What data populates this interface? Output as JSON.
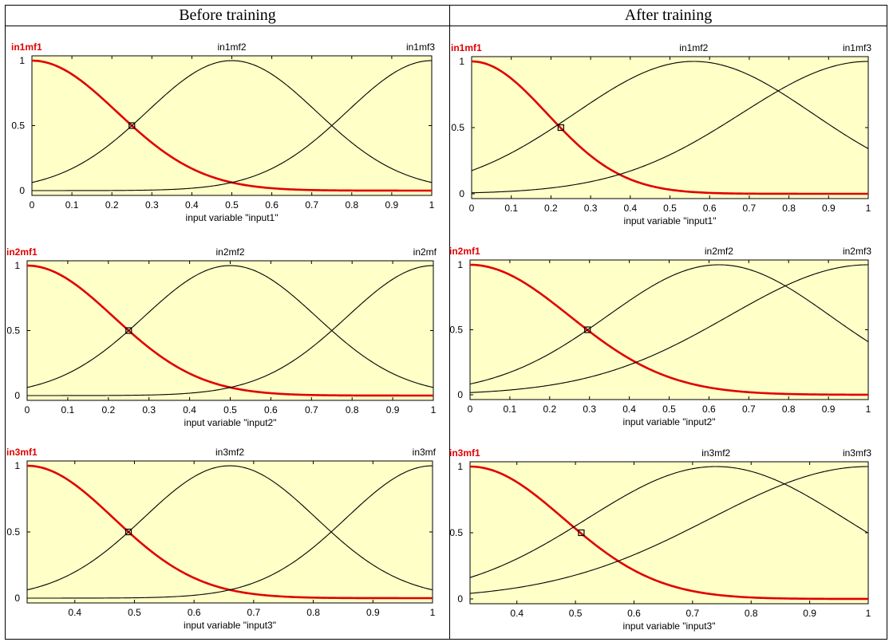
{
  "headers": {
    "left": "Before training",
    "right": "After training"
  },
  "chart_data": [
    {
      "type": "line",
      "panel": "Before training",
      "xlabel": "input variable \"input1\"",
      "xlim": [
        0,
        1
      ],
      "ylim": [
        0,
        1
      ],
      "xticks": [
        "0",
        "0.1",
        "0.2",
        "0.3",
        "0.4",
        "0.5",
        "0.6",
        "0.7",
        "0.8",
        "0.9",
        "1"
      ],
      "yticks": [
        "0",
        "0.5",
        "1"
      ],
      "series": [
        {
          "name": "in1mf1",
          "label": "in1mf1",
          "type": "gauss",
          "sigma": 0.2123,
          "center": 0,
          "color": "#e00000",
          "selected": true
        },
        {
          "name": "in1mf2",
          "label": "in1mf2",
          "type": "gauss",
          "sigma": 0.2123,
          "center": 0.5,
          "color": "#000000"
        },
        {
          "name": "in1mf3",
          "label": "in1mf3",
          "type": "gauss",
          "sigma": 0.2123,
          "center": 1,
          "color": "#000000"
        }
      ],
      "marker": {
        "x": 0.25,
        "y": 0.5
      }
    },
    {
      "type": "line",
      "panel": "After training",
      "xlabel": "input variable \"input1\"",
      "xlim": [
        0,
        1
      ],
      "ylim": [
        0,
        1
      ],
      "xticks": [
        "0",
        "0.1",
        "0.2",
        "0.3",
        "0.4",
        "0.5",
        "0.6",
        "0.7",
        "0.8",
        "0.9",
        "1"
      ],
      "yticks": [
        "0",
        "0.5",
        "1"
      ],
      "series": [
        {
          "name": "in1mf1",
          "label": "in1mf1",
          "type": "gauss",
          "sigma": 0.19,
          "center": 0,
          "color": "#e00000",
          "selected": true
        },
        {
          "name": "in1mf2",
          "label": "in1mf2",
          "type": "gauss",
          "sigma": 0.3,
          "center": 0.56,
          "color": "#000000"
        },
        {
          "name": "in1mf3",
          "label": "in1mf3",
          "type": "gauss",
          "sigma": 0.32,
          "center": 1,
          "color": "#000000"
        }
      ],
      "marker": {
        "x": 0.225,
        "y": 0.5
      }
    },
    {
      "type": "line",
      "panel": "Before training",
      "xlabel": "input variable \"input2\"",
      "xlim": [
        0,
        1
      ],
      "ylim": [
        0,
        1
      ],
      "xticks": [
        "0",
        "0.1",
        "0.2",
        "0.3",
        "0.4",
        "0.5",
        "0.6",
        "0.7",
        "0.8",
        "0.9",
        "1"
      ],
      "yticks": [
        "0",
        "0.5",
        "1"
      ],
      "series": [
        {
          "name": "in2mf1",
          "label": "in2mf1",
          "type": "gauss",
          "sigma": 0.2123,
          "center": 0,
          "color": "#e00000",
          "selected": true
        },
        {
          "name": "in2mf2",
          "label": "in2mf2",
          "type": "gauss",
          "sigma": 0.2123,
          "center": 0.5,
          "color": "#000000"
        },
        {
          "name": "in2mf3",
          "label": "in2mf",
          "type": "gauss",
          "sigma": 0.2123,
          "center": 1,
          "color": "#000000"
        }
      ],
      "marker": {
        "x": 0.25,
        "y": 0.5
      }
    },
    {
      "type": "line",
      "panel": "After training",
      "xlabel": "input variable \"input2\"",
      "xlim": [
        0,
        1
      ],
      "ylim": [
        0,
        1
      ],
      "xticks": [
        "0",
        "0.1",
        "0.2",
        "0.3",
        "0.4",
        "0.5",
        "0.6",
        "0.7",
        "0.8",
        "0.9",
        "1"
      ],
      "yticks": [
        "0",
        "0.5",
        "1"
      ],
      "series": [
        {
          "name": "in2mf1",
          "label": "in2mf1",
          "type": "gauss",
          "sigma": 0.25,
          "center": 0,
          "color": "#e00000",
          "selected": true
        },
        {
          "name": "in2mf2",
          "label": "in2mf2",
          "type": "gauss",
          "sigma": 0.28,
          "center": 0.625,
          "color": "#000000"
        },
        {
          "name": "in2mf3",
          "label": "in2mf3",
          "type": "gauss",
          "sigma": 0.35,
          "center": 1,
          "color": "#000000"
        }
      ],
      "marker": {
        "x": 0.295,
        "y": 0.5
      }
    },
    {
      "type": "line",
      "panel": "Before training",
      "xlabel": "input variable \"input3\"",
      "xlim": [
        0.32,
        1
      ],
      "ylim": [
        0,
        1
      ],
      "xticks": [
        "0.4",
        "0.5",
        "0.6",
        "0.7",
        "0.8",
        "0.9",
        "1"
      ],
      "xtick_values": [
        0.4,
        0.5,
        0.6,
        0.7,
        0.8,
        0.9,
        1
      ],
      "yticks": [
        "0",
        "0.5",
        "1"
      ],
      "series": [
        {
          "name": "in3mf1",
          "label": "in3mf1",
          "type": "gauss",
          "sigma": 0.1444,
          "center": 0.32,
          "color": "#e00000",
          "selected": true
        },
        {
          "name": "in3mf2",
          "label": "in3mf2",
          "type": "gauss",
          "sigma": 0.1444,
          "center": 0.66,
          "color": "#000000"
        },
        {
          "name": "in3mf3",
          "label": "in3mf",
          "type": "gauss",
          "sigma": 0.1444,
          "center": 1,
          "color": "#000000"
        }
      ],
      "marker": {
        "x": 0.49,
        "y": 0.5
      }
    },
    {
      "type": "line",
      "panel": "After training",
      "xlabel": "input variable \"input3\"",
      "xlim": [
        0.32,
        1
      ],
      "ylim": [
        0,
        1
      ],
      "xticks": [
        "0.4",
        "0.5",
        "0.6",
        "0.7",
        "0.8",
        "0.9",
        "1"
      ],
      "xtick_values": [
        0.4,
        0.5,
        0.6,
        0.7,
        0.8,
        0.9,
        1
      ],
      "yticks": [
        "0",
        "0.5",
        "1"
      ],
      "series": [
        {
          "name": "in3mf1",
          "label": "in3mf1",
          "type": "gauss",
          "sigma": 0.16,
          "center": 0.32,
          "color": "#e00000",
          "selected": true
        },
        {
          "name": "in3mf2",
          "label": "in3mf2",
          "type": "gauss",
          "sigma": 0.22,
          "center": 0.74,
          "color": "#000000"
        },
        {
          "name": "in3mf3",
          "label": "in3mf3",
          "type": "gauss",
          "sigma": 0.27,
          "center": 1,
          "color": "#000000"
        }
      ],
      "marker": {
        "x": 0.51,
        "y": 0.5
      }
    }
  ]
}
